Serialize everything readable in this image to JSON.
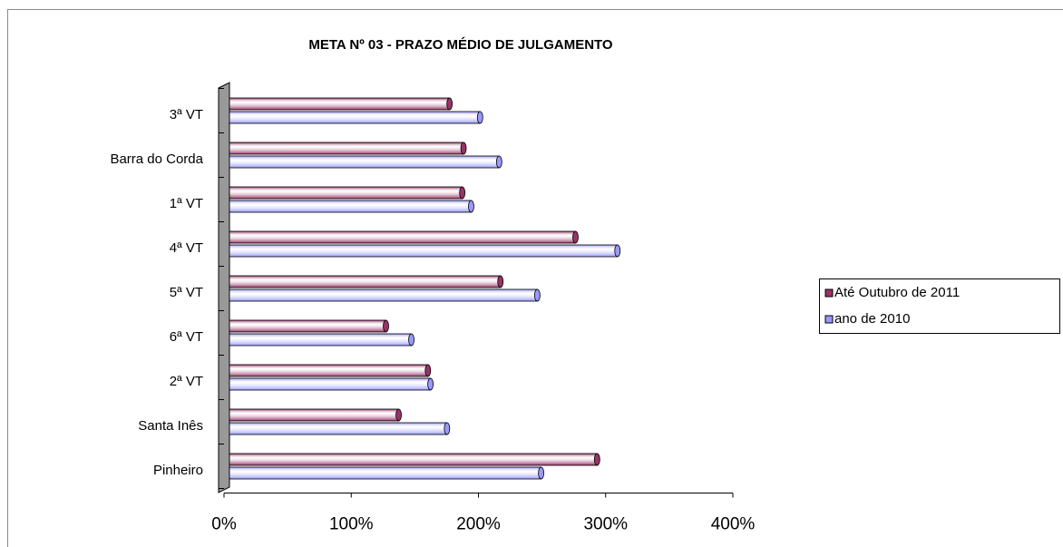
{
  "chart_data": {
    "type": "bar",
    "orientation": "horizontal",
    "title": "META Nº 03 - PRAZO MÉDIO DE JULGAMENTO",
    "categories": [
      "3ª VT",
      "Barra do Corda",
      "1ª VT",
      "4ª VT",
      "5ª VT",
      "6ª VT",
      "2ª VT",
      "Santa Inês",
      "Pinheiro"
    ],
    "series": [
      {
        "name": "Até Outubro de 2011",
        "color": "#993366",
        "values": [
          173,
          184,
          183,
          272,
          213,
          123,
          156,
          133,
          289
        ]
      },
      {
        "name": "ano de 2010",
        "color": "#9999ff",
        "values": [
          197,
          212,
          190,
          305,
          242,
          143,
          158,
          171,
          245
        ]
      }
    ],
    "xlim": [
      0,
      400
    ],
    "xticks": [
      {
        "value": 0,
        "label": "0%"
      },
      {
        "value": 100,
        "label": "100%"
      },
      {
        "value": 200,
        "label": "200%"
      },
      {
        "value": 300,
        "label": "300%"
      },
      {
        "value": 400,
        "label": "400%"
      }
    ],
    "legend": "right"
  }
}
